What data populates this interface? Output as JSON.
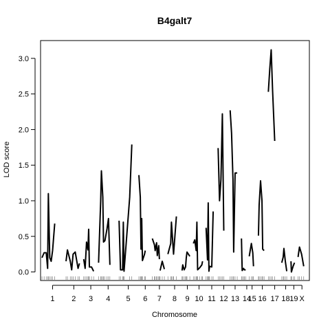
{
  "chart_data": {
    "type": "line",
    "title": "B4galt7",
    "xlabel": "Chromosome",
    "ylabel": "LOD score",
    "ylim": [
      -0.12,
      3.25
    ],
    "yticks": [
      "0.0",
      "0.5",
      "1.0",
      "1.5",
      "2.0",
      "2.5",
      "3.0"
    ],
    "chromosomes": [
      {
        "label": "1",
        "range": [
          0,
          30
        ],
        "segments": [
          [
            [
              0,
              0.2
            ],
            [
              3,
              0.27
            ],
            [
              6,
              0.27
            ],
            [
              8,
              0.05
            ],
            [
              9,
              1.1
            ],
            [
              11,
              0.2
            ],
            [
              13,
              0.15
            ],
            [
              15,
              0.3
            ],
            [
              18,
              0.68
            ]
          ]
        ]
      },
      {
        "label": "2",
        "range": [
          34,
          56
        ],
        "segments": [
          [
            [
              34,
              0.15
            ],
            [
              36,
              0.31
            ],
            [
              40,
              0.15
            ],
            [
              42,
              0.03
            ],
            [
              44,
              0.25
            ],
            [
              47,
              0.28
            ],
            [
              51,
              0.05
            ],
            [
              53,
              0.12
            ]
          ]
        ]
      },
      {
        "label": "3",
        "range": [
          59,
          79
        ],
        "segments": [
          [
            [
              59,
              0.18
            ],
            [
              61,
              0.05
            ],
            [
              63,
              0.42
            ],
            [
              65,
              0.31
            ],
            [
              66,
              0.6
            ],
            [
              67,
              0.07
            ],
            [
              70,
              0.07
            ],
            [
              73,
              0.01
            ]
          ]
        ]
      },
      {
        "label": "4",
        "range": [
          80,
          107
        ],
        "segments": [
          [
            [
              80,
              0.13
            ],
            [
              83,
              1.0
            ],
            [
              84,
              1.42
            ],
            [
              86,
              1.05
            ],
            [
              87,
              0.42
            ],
            [
              89,
              0.44
            ],
            [
              92,
              0.61
            ],
            [
              94,
              0.75
            ],
            [
              96,
              0.1
            ]
          ]
        ]
      },
      {
        "label": "5",
        "range": [
          109,
          135
        ],
        "segments": [
          [
            [
              109,
              0.72
            ],
            [
              111,
              0.03
            ],
            [
              114,
              0.03
            ],
            [
              115,
              0.7
            ],
            [
              116,
              0.01
            ],
            [
              124,
              1.05
            ],
            [
              127,
              1.79
            ]
          ]
        ]
      },
      {
        "label": "6",
        "range": [
          137,
          155
        ],
        "segments": [
          [
            [
              137,
              1.36
            ],
            [
              139,
              1.05
            ],
            [
              140,
              0.32
            ],
            [
              141,
              0.75
            ],
            [
              142,
              0.16
            ],
            [
              145,
              0.25
            ],
            [
              146,
              0.3
            ]
          ]
        ]
      },
      {
        "label": "7",
        "range": [
          156,
          176
        ],
        "segments": [
          [
            [
              156,
              0.47
            ],
            [
              159,
              0.38
            ],
            [
              160,
              0.3
            ],
            [
              162,
              0.41
            ],
            [
              163,
              0.23
            ],
            [
              165,
              0.37
            ],
            [
              166,
              0.18
            ]
          ],
          [
            [
              167,
              0.02
            ],
            [
              170,
              0.15
            ],
            [
              173,
              0.04
            ]
          ]
        ]
      },
      {
        "label": "8",
        "range": [
          178,
          197
        ],
        "segments": [
          [
            [
              178,
              0.25
            ],
            [
              182,
              0.4
            ],
            [
              183,
              0.7
            ],
            [
              185,
              0.4
            ],
            [
              186,
              0.25
            ],
            [
              190,
              0.78
            ]
          ]
        ]
      },
      {
        "label": "9",
        "range": [
          198,
          213
        ],
        "segments": [
          [
            [
              198,
              0.02
            ],
            [
              199,
              0.1
            ],
            [
              201,
              0.03
            ],
            [
              203,
              0.07
            ],
            [
              204,
              0.2
            ],
            [
              205,
              0.28
            ],
            [
              209,
              0.22
            ]
          ]
        ]
      },
      {
        "label": "10",
        "range": [
          214,
          230
        ],
        "segments": [
          [
            [
              214,
              0.4
            ],
            [
              216,
              0.45
            ],
            [
              218,
              0.3
            ],
            [
              219,
              0.7
            ],
            [
              220,
              0.03
            ],
            [
              223,
              0.06
            ],
            [
              226,
              0.1
            ],
            [
              227,
              0.15
            ]
          ]
        ]
      },
      {
        "label": "11",
        "range": [
          232,
          248
        ],
        "segments": [
          [
            [
              232,
              0.62
            ],
            [
              234,
              0.17
            ],
            [
              235,
              0.97
            ],
            [
              236,
              0.01
            ],
            [
              237,
              0.08
            ],
            [
              240,
              0.07
            ],
            [
              242,
              0.85
            ]
          ]
        ]
      },
      {
        "label": "12",
        "range": [
          249,
          265
        ],
        "segments": [
          [
            [
              249,
              1.74
            ],
            [
              251,
              1.0
            ],
            [
              253,
              1.3
            ],
            [
              255,
              2.22
            ],
            [
              257,
              0.58
            ]
          ]
        ]
      },
      {
        "label": "13",
        "range": [
          266,
          280
        ],
        "segments": [
          [
            [
              266,
              2.27
            ],
            [
              268,
              1.95
            ],
            [
              270,
              1.3
            ],
            [
              271,
              0.28
            ],
            [
              273,
              1.39
            ],
            [
              276,
              1.39
            ]
          ]
        ]
      },
      {
        "label": "14",
        "range": [
          282,
          297
        ],
        "segments": [
          [
            [
              282,
              0.47
            ],
            [
              283,
              0.02
            ],
            [
              285,
              0.05
            ],
            [
              286,
              0.03
            ],
            [
              288,
              0.03
            ]
          ]
        ]
      },
      {
        "label": "15",
        "range": [
          290,
          304
        ],
        "segments": [
          [
            [
              293,
              0.22
            ],
            [
              296,
              0.4
            ],
            [
              298,
              0.27
            ],
            [
              299,
              0.08
            ]
          ]
        ]
      },
      {
        "label": "16",
        "range": [
          304,
          319
        ],
        "segments": [
          [
            [
              306,
              0.51
            ],
            [
              307,
              0.94
            ],
            [
              309,
              1.28
            ],
            [
              311,
              1.0
            ],
            [
              312,
              0.32
            ],
            [
              314,
              0.3
            ]
          ]
        ]
      },
      {
        "label": "17",
        "range": [
          320,
          338
        ],
        "segments": [
          [
            [
              320,
              2.53
            ],
            [
              322,
              2.85
            ],
            [
              324,
              3.12
            ],
            [
              326,
              2.55
            ],
            [
              329,
              1.84
            ]
          ]
        ]
      },
      {
        "label": "18",
        "range": [
          339,
          350
        ],
        "segments": [
          [
            [
              339,
              0.13
            ],
            [
              341,
              0.21
            ],
            [
              342,
              0.33
            ],
            [
              344,
              0.15
            ],
            [
              346,
              0.01
            ]
          ]
        ]
      },
      {
        "label": "19",
        "range": [
          351,
          361
        ],
        "segments": [
          [
            [
              352,
              0.15
            ],
            [
              352.6,
              0.0
            ],
            [
              355,
              0.08
            ],
            [
              357,
              0.13
            ]
          ]
        ]
      },
      {
        "label": "X",
        "range": [
          361,
          374
        ],
        "segments": [
          [
            [
              362,
              0.21
            ],
            [
              364,
              0.35
            ],
            [
              367,
              0.25
            ],
            [
              370,
              0.08
            ]
          ]
        ]
      }
    ],
    "grid": false,
    "legend": "none"
  }
}
